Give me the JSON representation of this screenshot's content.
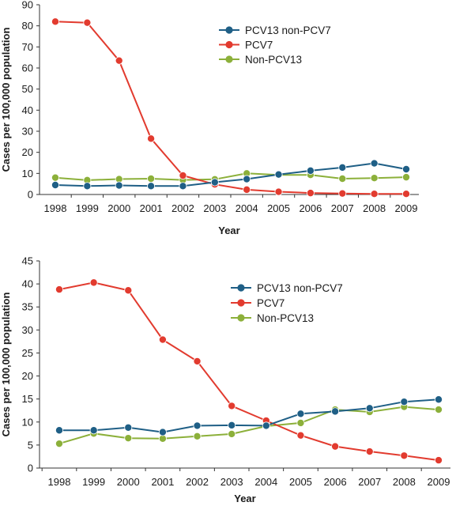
{
  "chart_data": [
    {
      "type": "line",
      "xlabel": "Year",
      "ylabel": "Cases per 100,000 population",
      "ylim": [
        0,
        90
      ],
      "yticks": [
        0,
        10,
        20,
        30,
        40,
        50,
        60,
        70,
        80,
        90
      ],
      "categories": [
        "1998",
        "1999",
        "2000",
        "2001",
        "2002",
        "2003",
        "2004",
        "2005",
        "2006",
        "2007",
        "2008",
        "2009"
      ],
      "legend_position": "top-right",
      "grid": false,
      "series": [
        {
          "name": "PCV13 non-PCV7",
          "color": "#1f5f86",
          "values": [
            4.5,
            4.0,
            4.3,
            4.0,
            4.0,
            5.8,
            7.3,
            9.5,
            11.3,
            12.8,
            14.8,
            12.0
          ]
        },
        {
          "name": "PCV7",
          "color": "#e23b2f",
          "values": [
            82,
            81.5,
            63.5,
            26.5,
            9.0,
            4.8,
            2.3,
            1.3,
            0.7,
            0.5,
            0.3,
            0.3
          ]
        },
        {
          "name": "Non-PCV13",
          "color": "#8cb03a",
          "values": [
            8.0,
            6.8,
            7.3,
            7.5,
            6.9,
            7.2,
            10.0,
            9.3,
            9.3,
            7.5,
            7.8,
            8.2
          ]
        }
      ]
    },
    {
      "type": "line",
      "xlabel": "Year",
      "ylabel": "Cases per 100,000 population",
      "ylim": [
        0,
        45
      ],
      "yticks": [
        0,
        5,
        10,
        15,
        20,
        25,
        30,
        35,
        40,
        45
      ],
      "categories": [
        "1998",
        "1999",
        "2000",
        "2001",
        "2002",
        "2003",
        "2004",
        "2005",
        "2006",
        "2007",
        "2008",
        "2009"
      ],
      "legend_position": "top-right",
      "grid": false,
      "series": [
        {
          "name": "PCV13 non-PCV7",
          "color": "#1f5f86",
          "values": [
            8.2,
            8.2,
            8.8,
            7.8,
            9.2,
            9.3,
            9.2,
            11.8,
            12.3,
            13.0,
            14.4,
            14.9
          ]
        },
        {
          "name": "PCV7",
          "color": "#e23b2f",
          "values": [
            38.8,
            40.3,
            38.6,
            27.9,
            23.2,
            13.5,
            10.3,
            7.1,
            4.7,
            3.6,
            2.7,
            1.7
          ]
        },
        {
          "name": "Non-PCV13",
          "color": "#8cb03a",
          "values": [
            5.3,
            7.5,
            6.5,
            6.4,
            6.9,
            7.4,
            9.1,
            9.8,
            12.7,
            12.2,
            13.3,
            12.7
          ]
        }
      ]
    }
  ]
}
